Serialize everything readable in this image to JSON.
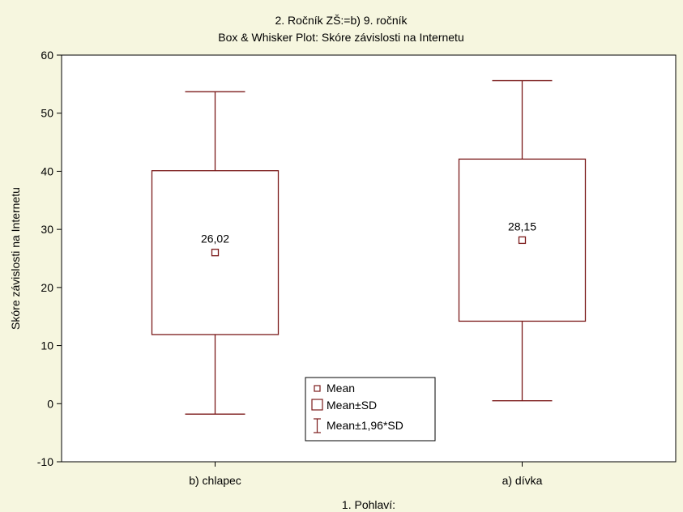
{
  "chart_data": {
    "type": "box",
    "title_line1": "2. Ročník ZŠ:=b) 9. ročník",
    "title_line2": "Box & Whisker Plot: Skóre závislosti na Internetu",
    "xlabel": "1. Pohlaví:",
    "ylabel": "Skóre závislosti na Internetu",
    "ylim": [
      -10,
      60
    ],
    "yticks": [
      "-10",
      "0",
      "10",
      "20",
      "30",
      "40",
      "50",
      "60"
    ],
    "categories": [
      "b) chlapec",
      "a) dívka"
    ],
    "boxes": [
      {
        "category": "b) chlapec",
        "mean": 26.02,
        "mean_label": "26,02",
        "box_low": 11.9,
        "box_high": 40.1,
        "whisker_low": -1.8,
        "whisker_high": 53.7
      },
      {
        "category": "a) dívka",
        "mean": 28.15,
        "mean_label": "28,15",
        "box_low": 14.2,
        "box_high": 42.1,
        "whisker_low": 0.5,
        "whisker_high": 55.6
      }
    ],
    "legend": {
      "placement": "bottom-center",
      "items": [
        "Mean",
        "Mean±SD",
        "Mean±1,96*SD"
      ]
    },
    "grid": false,
    "colors": {
      "box": "#7b1a1a",
      "background": "#f6f6df",
      "plot_area": "#ffffff"
    }
  }
}
